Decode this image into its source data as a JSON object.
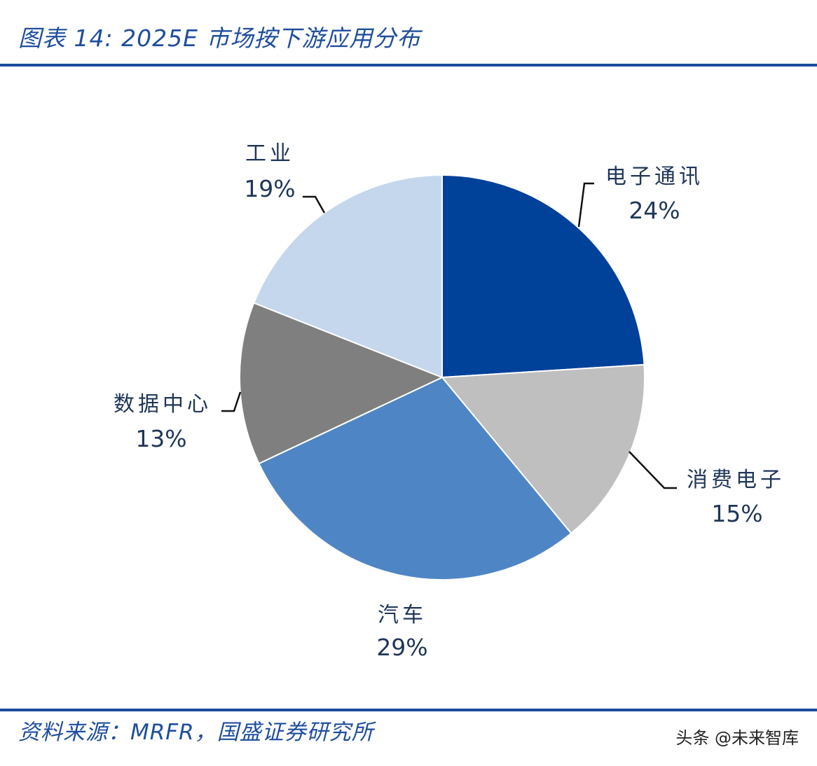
{
  "header": {
    "title": "图表 14:  2025E 市场按下游应用分布"
  },
  "footer": {
    "source": "资料来源：MRFR，国盛证券研究所",
    "watermark": "头条 @未来智库"
  },
  "colors": {
    "accent": "#1a4a9a",
    "label_text": "#1f3658",
    "slice_electronics_comm": "#00419a",
    "slice_consumer": "#bfbfbf",
    "slice_auto": "#4e86c5",
    "slice_datacenter": "#7f7f7f",
    "slice_industrial": "#c5d7ec"
  },
  "chart_data": {
    "type": "pie",
    "title": "2025E 市场按下游应用分布",
    "start_angle_deg": 0,
    "direction": "clockwise",
    "slices": [
      {
        "label": "电子通讯",
        "value": 24,
        "display": "24%",
        "color": "#00419a"
      },
      {
        "label": "消费电子",
        "value": 15,
        "display": "15%",
        "color": "#bfbfbf"
      },
      {
        "label": "汽车",
        "value": 29,
        "display": "29%",
        "color": "#4e86c5"
      },
      {
        "label": "数据中心",
        "value": 13,
        "display": "13%",
        "color": "#7f7f7f"
      },
      {
        "label": "工业",
        "value": 19,
        "display": "19%",
        "color": "#c5d7ec"
      }
    ]
  }
}
